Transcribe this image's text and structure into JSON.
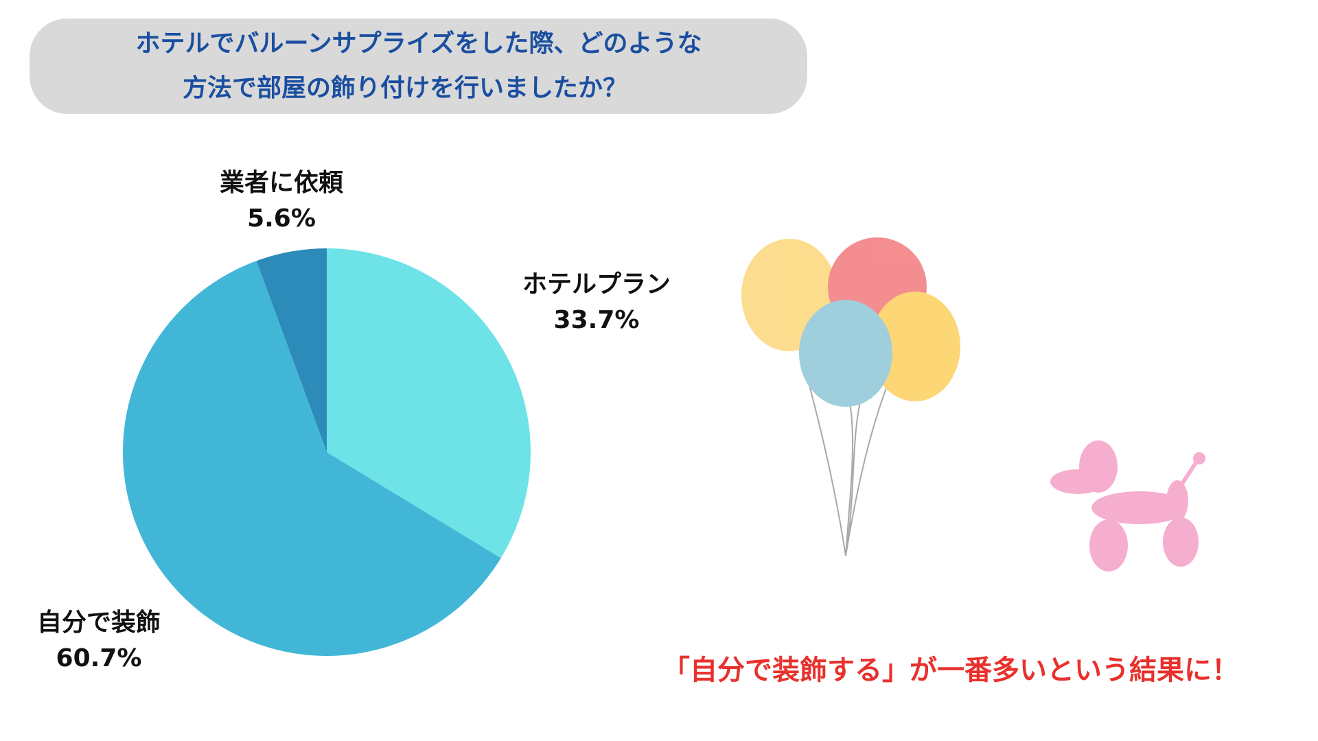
{
  "chart_data": {
    "type": "pie",
    "title": [
      "ホテルでバルーンサプライズをした際、どのような",
      "方法で部屋の飾り付けを行いましたか？"
    ],
    "categories": [
      "ホテルプラン",
      "自分で装飾",
      "業者に依頼"
    ],
    "values": [
      33.7,
      60.7,
      5.6
    ],
    "value_labels": [
      "33.7%",
      "60.7%",
      "5.6%"
    ],
    "colors": [
      "#6de3e8",
      "#42b6d6",
      "#2d8bb9"
    ],
    "annotation": "「自分で装飾する」が一番多いという結果に！"
  }
}
